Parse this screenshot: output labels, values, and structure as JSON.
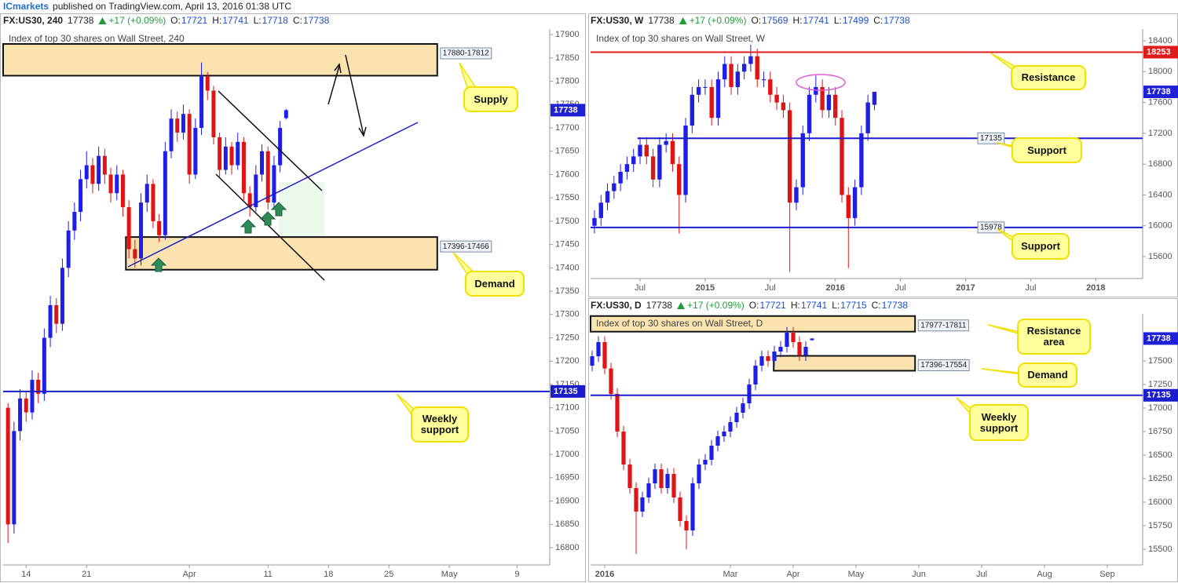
{
  "header": {
    "author": "ICmarkets",
    "text": "published on TradingView.com, April 13, 2016 01:38 UTC"
  },
  "chart_data": [
    {
      "type": "candlestick",
      "symbol": "FX:US30, 240",
      "last": "17738",
      "change": "+17 (+0.09%)",
      "ohlc": [
        {
          "label": "O:",
          "value": "17721"
        },
        {
          "label": "H:",
          "value": "17741"
        },
        {
          "label": "L:",
          "value": "17718"
        },
        {
          "label": "C:",
          "value": "17738"
        }
      ],
      "title": "Index of top 30 shares on Wall Street, 240",
      "colors": {
        "up": "#1e1ee6",
        "down": "#e01414"
      },
      "xlim": [
        -1.9,
        43.3
      ],
      "ylim": [
        16763,
        17912
      ],
      "xticks": [
        {
          "value": 0,
          "label": "14"
        },
        {
          "value": 5,
          "label": "21"
        },
        {
          "value": 13.5,
          "label": "Apr"
        },
        {
          "value": 20,
          "label": "11"
        },
        {
          "value": 25,
          "label": "18"
        },
        {
          "value": 30,
          "label": "25"
        },
        {
          "value": 35,
          "label": "May"
        },
        {
          "value": 40.6,
          "label": "9"
        }
      ],
      "yticks": [
        16800,
        16850,
        16900,
        16950,
        17000,
        17050,
        17100,
        17150,
        17200,
        17250,
        17300,
        17350,
        17400,
        17450,
        17500,
        17550,
        17600,
        17650,
        17700,
        17750,
        17800,
        17850,
        17900
      ],
      "x": [
        -1.5,
        -1,
        -0.5,
        0,
        0.5,
        1,
        1.5,
        2,
        2.5,
        3,
        3.5,
        4,
        4.5,
        5,
        5.5,
        6,
        6.5,
        7,
        7.5,
        8,
        8.5,
        9,
        9.5,
        10,
        10.5,
        11,
        11.5,
        12,
        12.5,
        13,
        13.5,
        14,
        14.5,
        15,
        15.5,
        16,
        16.5,
        17,
        17.5,
        18,
        18.5,
        19,
        19.5,
        20,
        20.5,
        21,
        21.5
      ],
      "open": [
        17100,
        16850,
        17050,
        17120,
        17090,
        17160,
        17130,
        17250,
        17320,
        17280,
        17400,
        17480,
        17520,
        17590,
        17620,
        17580,
        17640,
        17600,
        17560,
        17600,
        17530,
        17440,
        17420,
        17540,
        17580,
        17500,
        17470,
        17650,
        17720,
        17690,
        17730,
        17600,
        17700,
        17810,
        17780,
        17680,
        17610,
        17660,
        17620,
        17670,
        17560,
        17530,
        17600,
        17650,
        17540,
        17620,
        17721
      ],
      "high": [
        17110,
        17070,
        17140,
        17135,
        17180,
        17175,
        17270,
        17340,
        17335,
        17420,
        17500,
        17540,
        17610,
        17650,
        17635,
        17660,
        17655,
        17615,
        17620,
        17610,
        17545,
        17460,
        17560,
        17600,
        17590,
        17515,
        17670,
        17740,
        17735,
        17750,
        17740,
        17720,
        17840,
        17820,
        17790,
        17690,
        17680,
        17670,
        17690,
        17680,
        17575,
        17620,
        17665,
        17660,
        17640,
        17715,
        17741
      ],
      "low": [
        16810,
        16830,
        17030,
        17070,
        17075,
        17110,
        17115,
        17230,
        17260,
        17265,
        17380,
        17460,
        17500,
        17570,
        17560,
        17565,
        17580,
        17540,
        17545,
        17510,
        17420,
        17400,
        17405,
        17520,
        17485,
        17455,
        17460,
        17635,
        17670,
        17675,
        17580,
        17590,
        17685,
        17760,
        17665,
        17595,
        17600,
        17600,
        17610,
        17545,
        17510,
        17520,
        17585,
        17525,
        17530,
        17605,
        17718
      ],
      "close": [
        16850,
        17050,
        17120,
        17090,
        17160,
        17130,
        17250,
        17320,
        17280,
        17400,
        17480,
        17520,
        17590,
        17620,
        17580,
        17640,
        17600,
        17560,
        17600,
        17530,
        17440,
        17420,
        17540,
        17580,
        17500,
        17470,
        17650,
        17720,
        17690,
        17730,
        17600,
        17700,
        17810,
        17780,
        17680,
        17610,
        17660,
        17620,
        17670,
        17560,
        17530,
        17600,
        17650,
        17540,
        17620,
        17700,
        17738
      ],
      "zones": [
        {
          "label": "17880-17812",
          "top": 17880,
          "bottom": 17812,
          "x0": -1.9,
          "x1": 34.0
        },
        {
          "label": "17396-17466",
          "top": 17466,
          "bottom": 17396,
          "x0": 8.25,
          "x1": 34.0
        }
      ],
      "levels": [
        {
          "value": 17135,
          "color": "#1c1ccc",
          "tag": "axis"
        }
      ],
      "last_price": 17738,
      "annotations": [
        "Supply",
        "Demand",
        "Weekly support"
      ]
    },
    {
      "type": "candlestick",
      "symbol": "FX:US30, W",
      "last": "17738",
      "change": "+17 (+0.09%)",
      "ohlc": [
        {
          "label": "O:",
          "value": "17569"
        },
        {
          "label": "H:",
          "value": "17741"
        },
        {
          "label": "L:",
          "value": "17499"
        },
        {
          "label": "C:",
          "value": "17738"
        }
      ],
      "title": "Index of top 30 shares on Wall Street, W",
      "colors": {
        "up": "#1e1ee6",
        "down": "#e01414"
      },
      "xlim": [
        2014.12,
        2018.36
      ],
      "ylim": [
        15315,
        18553
      ],
      "xticks": [
        {
          "value": 2014.5,
          "label": "Jul"
        },
        2015,
        {
          "value": 2015.5,
          "label": "Jul"
        },
        2016,
        {
          "value": 2016.5,
          "label": "Jul"
        },
        2017,
        {
          "value": 2017.5,
          "label": "Jul"
        },
        2018
      ],
      "yticks": [
        15600,
        16000,
        16400,
        16800,
        17200,
        17600,
        18000,
        18400
      ],
      "x": [
        2014.15,
        2014.2,
        2014.25,
        2014.3,
        2014.35,
        2014.4,
        2014.45,
        2014.5,
        2014.55,
        2014.6,
        2014.65,
        2014.7,
        2014.75,
        2014.8,
        2014.85,
        2014.9,
        2014.95,
        2015.0,
        2015.05,
        2015.1,
        2015.15,
        2015.2,
        2015.25,
        2015.3,
        2015.35,
        2015.4,
        2015.45,
        2015.5,
        2015.55,
        2015.6,
        2015.65,
        2015.7,
        2015.75,
        2015.8,
        2015.85,
        2015.9,
        2015.95,
        2016.0,
        2016.05,
        2016.1,
        2016.15,
        2016.2,
        2016.25,
        2016.3
      ],
      "open": [
        16000,
        16100,
        16300,
        16450,
        16550,
        16700,
        16800,
        16900,
        17050,
        16900,
        16600,
        17050,
        17100,
        16800,
        16400,
        17300,
        17700,
        17800,
        17800,
        17400,
        17900,
        18100,
        17800,
        18000,
        18100,
        18200,
        17900,
        17900,
        17700,
        17600,
        17500,
        16300,
        16500,
        17200,
        17700,
        17800,
        17500,
        17700,
        17400,
        16400,
        16100,
        16500,
        17200,
        17569
      ],
      "high": [
        16200,
        16400,
        16550,
        16650,
        16800,
        16900,
        17000,
        17150,
        17150,
        17000,
        17150,
        17200,
        17200,
        16900,
        17400,
        17800,
        17900,
        17900,
        17900,
        18000,
        18200,
        18200,
        18100,
        18200,
        18350,
        18300,
        18000,
        18000,
        17800,
        17700,
        17600,
        16600,
        17300,
        17800,
        17950,
        17900,
        17800,
        17800,
        17500,
        16500,
        16600,
        17300,
        17700,
        17741
      ],
      "low": [
        15900,
        16000,
        16200,
        16350,
        16450,
        16600,
        16700,
        16800,
        16800,
        16500,
        16500,
        16950,
        16700,
        15900,
        16300,
        17200,
        17600,
        17700,
        17300,
        17300,
        17800,
        17700,
        17700,
        17900,
        18000,
        17800,
        17800,
        17600,
        17500,
        17400,
        15400,
        16200,
        16400,
        17100,
        17600,
        17400,
        17400,
        17300,
        16300,
        15450,
        16000,
        16400,
        17100,
        17499
      ],
      "close": [
        16100,
        16300,
        16450,
        16550,
        16700,
        16800,
        16900,
        17050,
        16900,
        16600,
        17050,
        17100,
        16800,
        16400,
        17300,
        17700,
        17800,
        17800,
        17400,
        17900,
        18100,
        17800,
        18000,
        18100,
        18200,
        17900,
        17900,
        17700,
        17600,
        17500,
        16300,
        16500,
        17200,
        17700,
        17800,
        17500,
        17700,
        17400,
        16400,
        16100,
        16500,
        17200,
        17600,
        17738
      ],
      "zones": [],
      "levels": [
        {
          "value": 18253,
          "color": "#e01b1b",
          "tag": "axis"
        },
        {
          "value": 17135,
          "color": "#1c1ccc",
          "tag": "inline",
          "from": 2014.48
        },
        {
          "value": 15978,
          "color": "#1c1ccc",
          "tag": "inline",
          "from": 2014.12
        }
      ],
      "last_price": 17738,
      "annotations": [
        "Resistance",
        "Support",
        "Support"
      ]
    },
    {
      "type": "candlestick",
      "symbol": "FX:US30, D",
      "last": "17738",
      "change": "+17 (+0.09%)",
      "ohlc": [
        {
          "label": "O:",
          "value": "17721"
        },
        {
          "label": "H:",
          "value": "17741"
        },
        {
          "label": "L:",
          "value": "17715"
        },
        {
          "label": "C:",
          "value": "17738"
        }
      ],
      "title": "Index of top 30 shares on Wall Street, D",
      "colors": {
        "up": "#1e1ee6",
        "down": "#e01414"
      },
      "xlim": [
        0.775,
        9.5625
      ],
      "ylim": [
        15333,
        18000
      ],
      "xticks": [
        {
          "value": 1,
          "label": "2016"
        },
        {
          "value": 3,
          "label": "Mar"
        },
        {
          "value": 4,
          "label": "Apr"
        },
        {
          "value": 5,
          "label": "May"
        },
        {
          "value": 6,
          "label": "Jun"
        },
        {
          "value": 7,
          "label": "Jul"
        },
        {
          "value": 8,
          "label": "Aug"
        },
        {
          "value": 9,
          "label": "Sep"
        }
      ],
      "yticks": [
        15500,
        15750,
        16000,
        16250,
        16500,
        16750,
        17000,
        17250,
        17500
      ],
      "x": [
        0.8,
        0.9,
        1.0,
        1.1,
        1.2,
        1.3,
        1.4,
        1.5,
        1.6,
        1.7,
        1.8,
        1.9,
        2.0,
        2.1,
        2.2,
        2.3,
        2.4,
        2.5,
        2.6,
        2.7,
        2.8,
        2.9,
        3.0,
        3.1,
        3.2,
        3.3,
        3.4,
        3.5,
        3.6,
        3.7,
        3.8,
        3.9,
        4.0,
        4.1,
        4.2,
        4.3
      ],
      "open": [
        17450,
        17550,
        17700,
        17420,
        17150,
        16750,
        16400,
        16150,
        15900,
        16050,
        16200,
        16350,
        16150,
        16300,
        16050,
        15800,
        15700,
        16200,
        16400,
        16450,
        16600,
        16700,
        16750,
        16850,
        16950,
        17050,
        17250,
        17450,
        17550,
        17500,
        17600,
        17650,
        17800,
        17700,
        17560,
        17721
      ],
      "high": [
        17610,
        17760,
        17760,
        17480,
        17210,
        16810,
        16460,
        16210,
        16110,
        16260,
        16410,
        16410,
        16360,
        16360,
        16110,
        15860,
        16260,
        16460,
        16510,
        16660,
        16760,
        16810,
        16910,
        17010,
        17110,
        17310,
        17510,
        17610,
        17610,
        17660,
        17710,
        17860,
        17860,
        17760,
        17710,
        17741
      ],
      "low": [
        17390,
        17490,
        17360,
        17090,
        16690,
        16340,
        16090,
        15450,
        15840,
        15990,
        16140,
        16090,
        16090,
        15990,
        15740,
        15500,
        15640,
        16140,
        16340,
        16390,
        16540,
        16640,
        16690,
        16790,
        16890,
        16990,
        17190,
        17390,
        17440,
        17440,
        17540,
        17590,
        17640,
        17500,
        17500,
        17715
      ],
      "close": [
        17550,
        17700,
        17420,
        17150,
        16750,
        16400,
        16150,
        15900,
        16050,
        16200,
        16350,
        16150,
        16300,
        16050,
        15800,
        15700,
        16200,
        16400,
        16450,
        16600,
        16700,
        16750,
        16850,
        16950,
        17050,
        17250,
        17450,
        17550,
        17500,
        17600,
        17650,
        17800,
        17700,
        17560,
        17650,
        17738
      ],
      "zones": [
        {
          "label": "17977-17811",
          "top": 17977,
          "bottom": 17811,
          "x0": 0.775,
          "x1": 5.94
        },
        {
          "label": "17396-17554",
          "top": 17554,
          "bottom": 17396,
          "x0": 3.69,
          "x1": 5.94
        }
      ],
      "levels": [
        {
          "value": 17135,
          "color": "#1c1ccc",
          "tag": "axis"
        }
      ],
      "last_price": 17738,
      "annotations": [
        "Resistance area",
        "Demand",
        "Weekly support"
      ]
    }
  ]
}
